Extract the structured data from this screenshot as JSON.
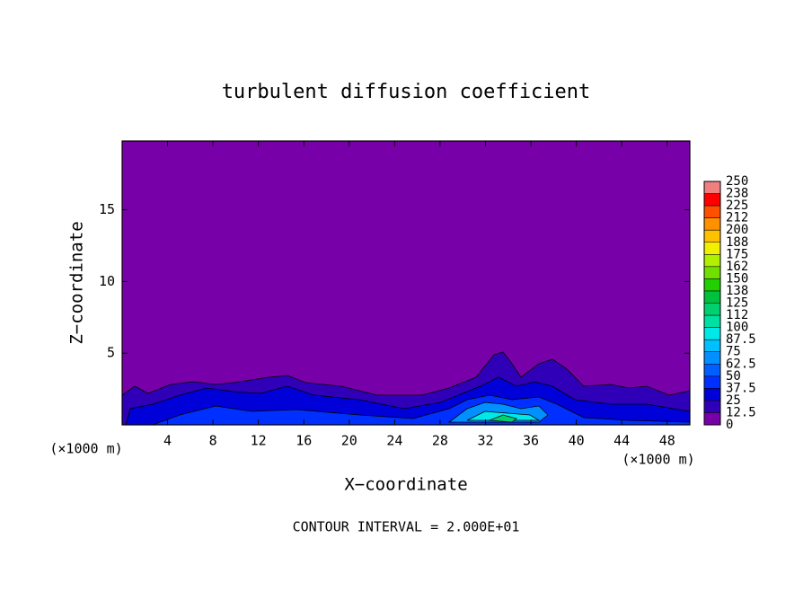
{
  "chart_data": {
    "type": "contour",
    "title": "turbulent diffusion coefficient",
    "xlabel": "X−coordinate",
    "ylabel": "Z−coordinate",
    "x_unit": "(×1000 m)",
    "x_unit_right": "(×1000 m)",
    "note": "CONTOUR INTERVAL = 2.000E+01",
    "xlim": [
      0,
      50
    ],
    "xticks": [
      4,
      8,
      12,
      16,
      20,
      24,
      28,
      32,
      36,
      40,
      44,
      48
    ],
    "ylim": [
      0,
      19.8
    ],
    "yticks": [
      5,
      10,
      15
    ],
    "colorbar": {
      "ticks": [
        0,
        12.5,
        25,
        37.5,
        50,
        62.5,
        75,
        87.5,
        100,
        {
          "value": 112.5,
          "label": "112"
        },
        125,
        {
          "value": 137.5,
          "label": "138"
        },
        150,
        {
          "value": 162.5,
          "label": "162"
        },
        175,
        {
          "value": 187.5,
          "label": "188"
        },
        200,
        {
          "value": 212.5,
          "label": "212"
        },
        225,
        {
          "value": 237.5,
          "label": "238"
        },
        250
      ],
      "colors": [
        "#7800a8",
        "#3000b8",
        "#0000d8",
        "#0030ff",
        "#0060ff",
        "#0090ff",
        "#00c0ff",
        "#00e8e8",
        "#00e0a0",
        "#00d070",
        "#00c040",
        "#20d000",
        "#70e000",
        "#b0f000",
        "#f0f000",
        "#ffc000",
        "#ff9000",
        "#ff5000",
        "#ff0000",
        "#f08080"
      ]
    }
  }
}
